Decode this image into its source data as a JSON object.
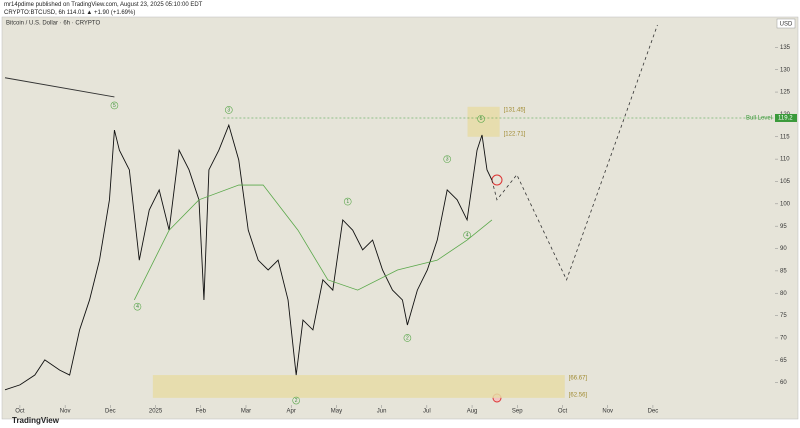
{
  "header": {
    "author_line": "mr14pdime published on TradingView.com, August 23, 2025 05:10:00 EDT",
    "symbol_line": "CRYPTO:BTCUSD, 6h 114.01 ▲ +1.90 (+1.69%)"
  },
  "footer": {
    "brand": "TradingView"
  },
  "chart_data": {
    "type": "line",
    "title": "Bitcoin / U.S. Dollar · 6h · CRYPTO",
    "currency": "USD",
    "xlim": [
      -0.33,
      16.7
    ],
    "xticks": [
      {
        "value": 0,
        "label": "Oct"
      },
      {
        "value": 1,
        "label": "Nov"
      },
      {
        "value": 2,
        "label": "Dec"
      },
      {
        "value": 3,
        "label": "2025"
      },
      {
        "value": 4,
        "label": "Feb"
      },
      {
        "value": 5,
        "label": "Mar"
      },
      {
        "value": 6,
        "label": "Apr"
      },
      {
        "value": 7,
        "label": "May"
      },
      {
        "value": 8,
        "label": "Jun"
      },
      {
        "value": 9,
        "label": "Jul"
      },
      {
        "value": 10,
        "label": "Aug"
      },
      {
        "value": 11,
        "label": "Sep"
      },
      {
        "value": 12,
        "label": "Oct"
      },
      {
        "value": 13,
        "label": "Nov"
      },
      {
        "value": 14,
        "label": "Dec"
      }
    ],
    "ylim": [
      55,
      140
    ],
    "yticks": [
      60,
      65,
      70,
      75,
      80,
      85,
      90,
      95,
      100,
      105,
      110,
      115,
      120,
      125,
      130,
      135
    ],
    "series": [
      {
        "color": "#111111",
        "style": "solid",
        "width": 0.9,
        "x": [
          -0.33,
          0,
          0.33,
          0.55,
          0.88,
          1.1,
          1.32,
          1.54,
          1.76,
          1.98,
          2.09,
          2.2,
          2.42,
          2.64,
          2.86,
          3.08,
          3.3,
          3.52,
          3.74,
          3.96,
          4.07,
          4.18,
          4.4,
          4.62,
          4.84,
          5.05,
          5.27,
          5.49,
          5.71,
          5.93,
          6.11,
          6.26,
          6.48,
          6.7,
          6.92,
          7.14,
          7.36,
          7.58,
          7.8,
          8.02,
          8.24,
          8.46,
          8.57,
          8.79,
          9.01,
          9.23,
          9.45,
          9.67,
          9.89,
          10.11,
          10.22,
          10.33,
          10.44
        ],
        "values": [
          58.4,
          59.5,
          61.7,
          65.1,
          62.8,
          61.7,
          71.8,
          78.5,
          87.4,
          100.9,
          116.5,
          112.0,
          107.6,
          87.4,
          98.6,
          103.1,
          94.1,
          112.0,
          107.6,
          100.9,
          78.5,
          107.6,
          112.0,
          117.6,
          109.8,
          94.1,
          87.4,
          85.2,
          87.4,
          78.5,
          61.7,
          74.0,
          71.8,
          83.0,
          80.7,
          96.4,
          94.1,
          89.7,
          91.9,
          85.2,
          80.7,
          78.5,
          72.9,
          80.7,
          85.2,
          91.9,
          103.1,
          100.9,
          96.4,
          112.0,
          115.4,
          107.6,
          105.3
        ]
      },
      {
        "color": "#5aa84a",
        "style": "solid",
        "width": 0.8,
        "x": [
          2.53,
          3.3,
          3.96,
          4.84,
          5.38,
          6.15,
          6.81,
          7.47,
          8.35,
          9.23,
          9.89,
          10.44
        ],
        "values": [
          78.5,
          94.1,
          100.9,
          104.2,
          104.2,
          94.1,
          83.0,
          80.7,
          85.2,
          87.4,
          91.9,
          96.4
        ]
      },
      {
        "color": "#333333",
        "style": "solid",
        "width": 0.9,
        "x": [
          -0.33,
          2.09
        ],
        "values": [
          128.2,
          123.9
        ]
      },
      {
        "color": "#333333",
        "style": "dashed",
        "width": 0.8,
        "x": [
          10.44,
          10.55,
          10.99,
          12.09,
          14.1
        ],
        "values": [
          105.3,
          100.9,
          106.5,
          83.0,
          140
        ]
      }
    ],
    "levels": [
      {
        "value": 119.2,
        "label": "Bull Level",
        "color": "#3a9a3a"
      }
    ],
    "zones": [
      {
        "x": [
          2.94,
          12.05
        ],
        "y": [
          56.6,
          61.7
        ],
        "color": "#e6dca6",
        "labels": [
          "[66.67]",
          "[62.56]"
        ]
      },
      {
        "x": [
          9.9,
          10.61
        ],
        "y": [
          115,
          121.7
        ],
        "color": "#e6dca6",
        "labels": [
          "[131.45]",
          "[122.71]"
        ]
      }
    ],
    "annotations": [
      {
        "x": 2.09,
        "y": 122,
        "text": "5"
      },
      {
        "x": 4.62,
        "y": 121,
        "text": "3"
      },
      {
        "x": 7.25,
        "y": 100.5,
        "text": "1"
      },
      {
        "x": 8.57,
        "y": 70,
        "text": "2"
      },
      {
        "x": 9.45,
        "y": 110,
        "text": "3"
      },
      {
        "x": 9.89,
        "y": 93,
        "text": "4"
      },
      {
        "x": 10.2,
        "y": 119,
        "text": "5"
      },
      {
        "x": 2.6,
        "y": 77,
        "text": "4"
      },
      {
        "x": 6.11,
        "y": 56,
        "text": "2"
      }
    ]
  }
}
